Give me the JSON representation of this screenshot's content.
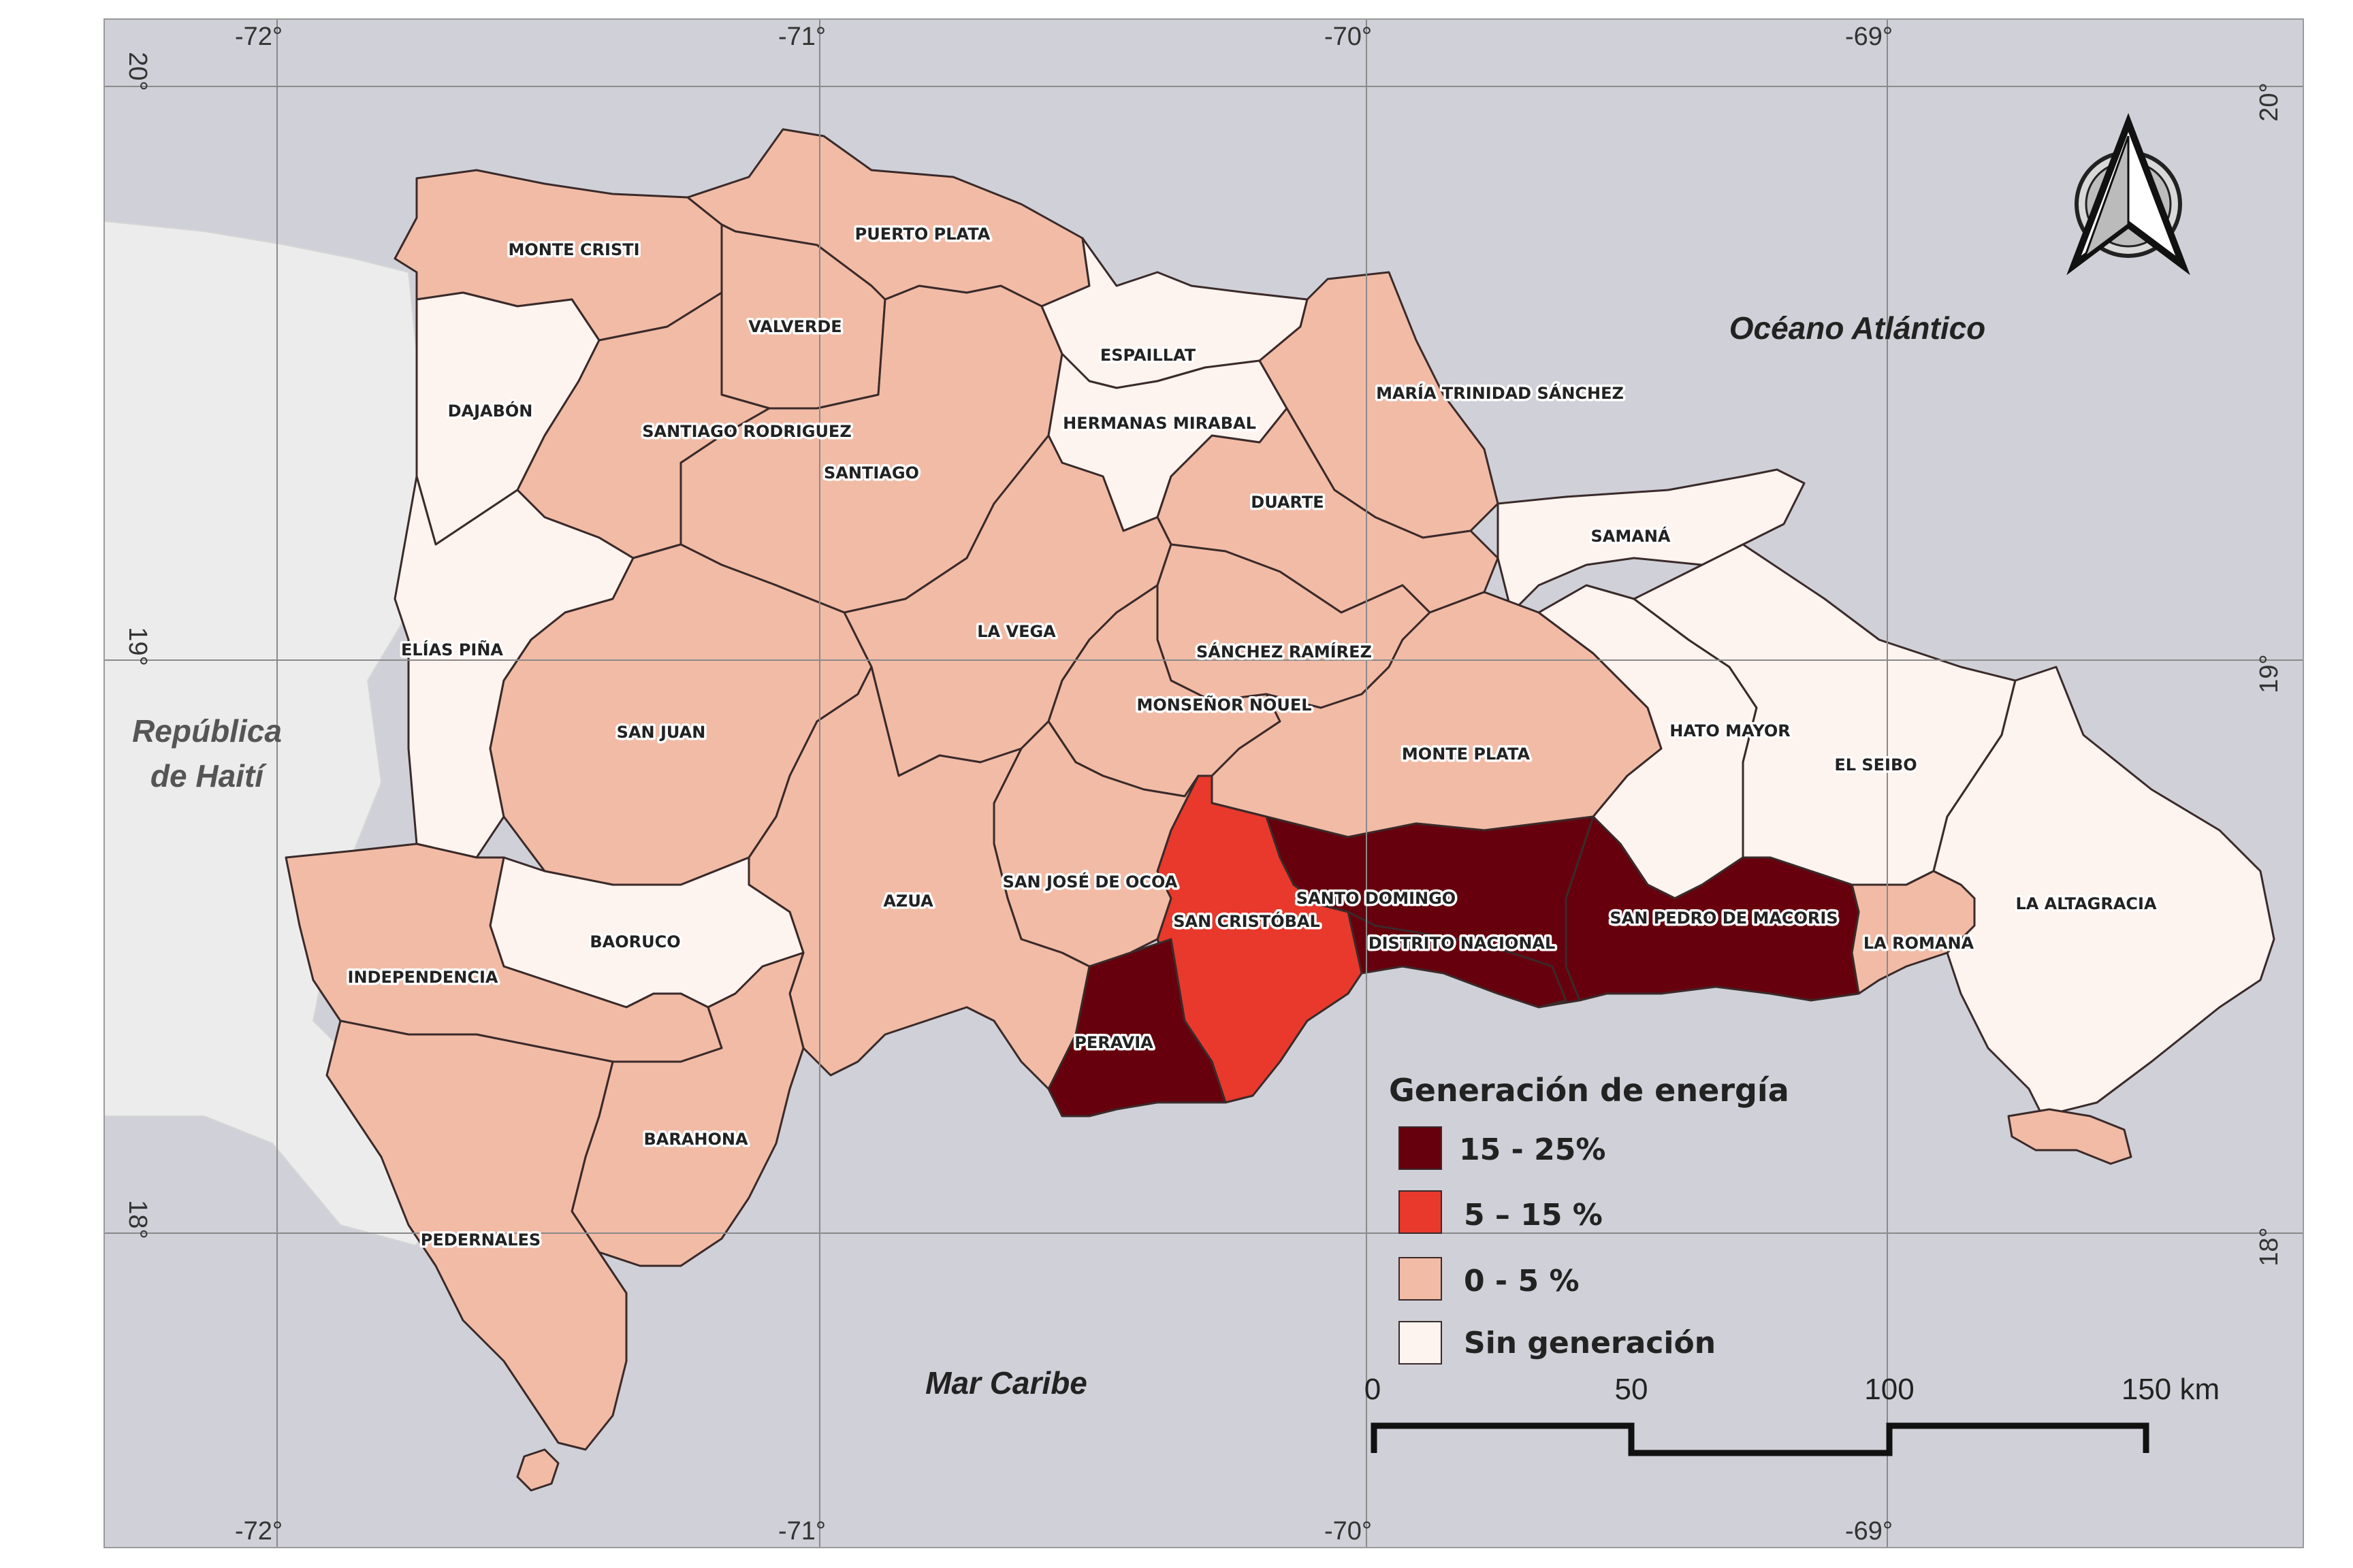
{
  "colors": {
    "sea": "#d0d0d8",
    "haiti": "#ececec",
    "class_15_25": "#67000d",
    "class_5_15": "#e8392c",
    "class_0_5": "#f2bba6",
    "class_none": "#fdf3ef",
    "border": "#3a2a2a",
    "grid": "#8a8a8a"
  },
  "grid": {
    "top_longitudes": [
      "-72°",
      "-71°",
      "-70°",
      "-69°"
    ],
    "bottom_longitudes": [
      "-72°",
      "-71°",
      "-70°",
      "-69°"
    ],
    "left_latitudes": [
      "20°",
      "19°",
      "18°"
    ],
    "right_latitudes": [
      "20°",
      "19°",
      "18°"
    ]
  },
  "sea_labels": {
    "atlantic": "Océano Atlántico",
    "caribbean": "Mar Caribe"
  },
  "haiti_label": {
    "line1": "República",
    "line2": "de Haití"
  },
  "provinces": [
    {
      "id": "monte-cristi",
      "name": "MONTE CRISTI",
      "class": "0-5"
    },
    {
      "id": "puerto-plata",
      "name": "PUERTO PLATA",
      "class": "0-5"
    },
    {
      "id": "valverde",
      "name": "VALVERDE",
      "class": "0-5"
    },
    {
      "id": "espaillat",
      "name": "ESPAILLAT",
      "class": "none"
    },
    {
      "id": "dajabon",
      "name": "DAJABÓN",
      "class": "none"
    },
    {
      "id": "hermanas-mirabal",
      "name": "HERMANAS MIRABAL",
      "class": "none"
    },
    {
      "id": "maria-trinidad-sanchez",
      "name": "MARÍA TRINIDAD SÁNCHEZ",
      "class": "0-5"
    },
    {
      "id": "santiago-rodriguez",
      "name": "SANTIAGO RODRIGUEZ",
      "class": "0-5"
    },
    {
      "id": "santiago",
      "name": "SANTIAGO",
      "class": "0-5"
    },
    {
      "id": "duarte",
      "name": "DUARTE",
      "class": "0-5"
    },
    {
      "id": "samana",
      "name": "SAMANÁ",
      "class": "none"
    },
    {
      "id": "la-vega",
      "name": "LA VEGA",
      "class": "0-5"
    },
    {
      "id": "elias-pina",
      "name": "ELÍAS PIÑA",
      "class": "none"
    },
    {
      "id": "sanchez-ramirez",
      "name": "SÁNCHEZ RAMÍREZ",
      "class": "0-5"
    },
    {
      "id": "monsenor-nouel",
      "name": "MONSEÑOR NOUEL",
      "class": "0-5"
    },
    {
      "id": "san-juan",
      "name": "SAN JUAN",
      "class": "0-5"
    },
    {
      "id": "hato-mayor",
      "name": "HATO MAYOR",
      "class": "none"
    },
    {
      "id": "monte-plata",
      "name": "MONTE PLATA",
      "class": "0-5"
    },
    {
      "id": "el-seibo",
      "name": "EL SEIBO",
      "class": "none"
    },
    {
      "id": "san-jose-de-ocoa",
      "name": "SAN JOSÉ DE OCOA",
      "class": "0-5"
    },
    {
      "id": "azua",
      "name": "AZUA",
      "class": "0-5"
    },
    {
      "id": "santo-domingo",
      "name": "SANTO DOMINGO",
      "class": "15-25"
    },
    {
      "id": "la-altagracia",
      "name": "LA ALTAGRACIA",
      "class": "none"
    },
    {
      "id": "san-cristobal",
      "name": "SAN CRISTÓBAL",
      "class": "5-15"
    },
    {
      "id": "san-pedro-de-macoris",
      "name": "SAN PEDRO DE MACORIS",
      "class": "15-25"
    },
    {
      "id": "baoruco",
      "name": "BAORUCO",
      "class": "none"
    },
    {
      "id": "distrito-nacional",
      "name": "DISTRITO NACIONAL",
      "class": "15-25"
    },
    {
      "id": "la-romana",
      "name": "LA ROMANA",
      "class": "0-5"
    },
    {
      "id": "independencia",
      "name": "INDEPENDENCIA",
      "class": "0-5"
    },
    {
      "id": "peravia",
      "name": "PERAVIA",
      "class": "15-25"
    },
    {
      "id": "barahona",
      "name": "BARAHONA",
      "class": "0-5"
    },
    {
      "id": "pedernales",
      "name": "PEDERNALES",
      "class": "0-5"
    }
  ],
  "legend": {
    "title": "Generación de energía",
    "items": [
      {
        "label": "15 - 25%",
        "class": "15-25"
      },
      {
        "label": "5 – 15 %",
        "class": "5-15"
      },
      {
        "label": "0 - 5 %",
        "class": "0-5"
      },
      {
        "label": "Sin generación",
        "class": "none"
      }
    ]
  },
  "scale_bar": {
    "labels": [
      "0",
      "50",
      "100",
      "150 km"
    ]
  },
  "north_arrow": {
    "icon": "north-arrow-icon"
  }
}
